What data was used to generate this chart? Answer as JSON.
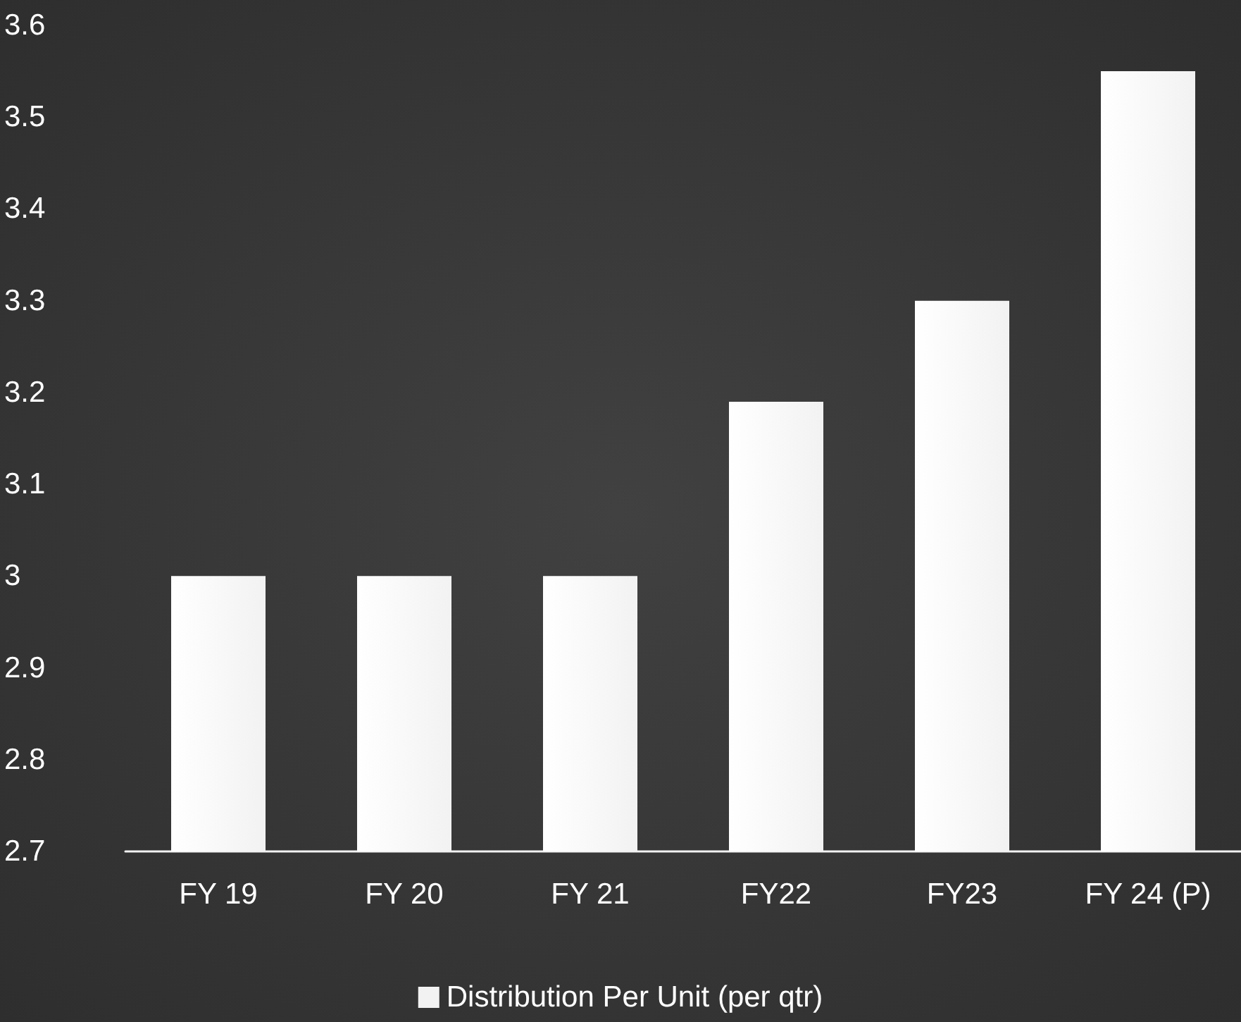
{
  "chart_data": {
    "type": "bar",
    "categories": [
      "FY 19",
      "FY 20",
      "FY 21",
      "FY22",
      "FY23",
      "FY 24 (P)"
    ],
    "series": [
      {
        "name": "Distribution Per Unit (per qtr)",
        "color": "#f2f2f2",
        "values": [
          3,
          3,
          3,
          3.19,
          3.3,
          3.55
        ]
      }
    ],
    "ylim": [
      2.7,
      3.6
    ],
    "yticks": [
      2.7,
      2.8,
      2.9,
      3,
      3.1,
      3.2,
      3.3,
      3.4,
      3.5,
      3.6
    ],
    "grid": false,
    "legend": "bottom"
  }
}
